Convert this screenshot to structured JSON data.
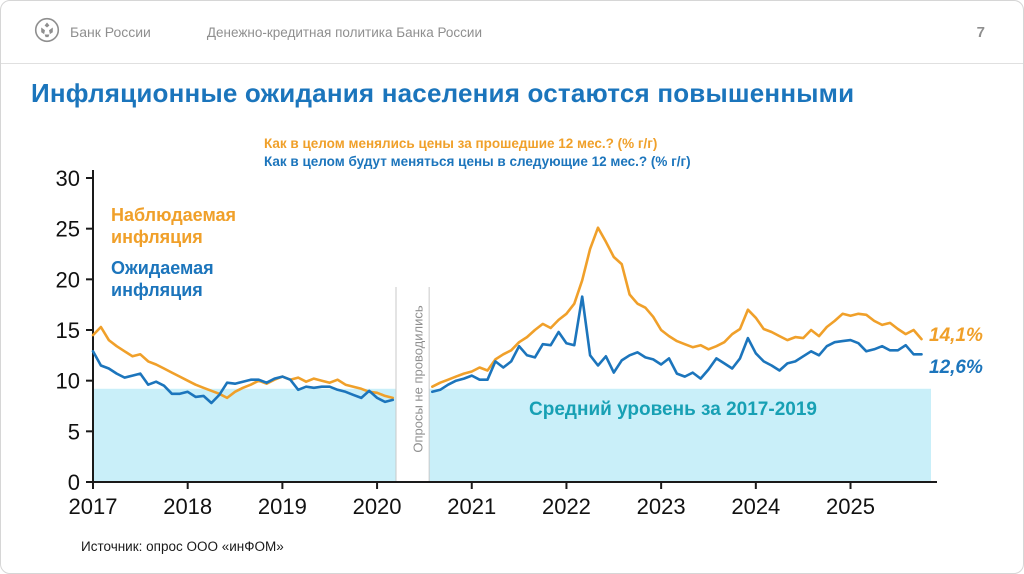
{
  "header": {
    "logo_text": "Банк России",
    "doc_title": "Денежно-кредитная политика Банка России",
    "page_number": "7"
  },
  "title": "Инфляционные ожидания населения остаются повышенными",
  "subtitles": {
    "observed": "Как в целом менялись цены за прошедшие 12 мес.? (% г/г)",
    "expected": "Как в целом будут меняться цены в следующие 12 мес.? (% г/г)"
  },
  "annotations": {
    "observed_label": "Наблюдаемая инфляция",
    "expected_label": "Ожидаемая инфляция",
    "band_label": "Средний уровень за 2017-2019",
    "gap_label": "Опросы не проводились",
    "observed_end_value": "14,1%",
    "expected_end_value": "12,6%"
  },
  "footer": {
    "source": "Источник: опрос ООО «инФОМ»"
  },
  "colors": {
    "orange": "#F0A02A",
    "blue": "#1C75BC",
    "band": "#C9EFF9",
    "band_text": "#17A0B4",
    "title_blue": "#1B75BC",
    "axis": "#1a1a1a",
    "gap_border": "#c8c8c8"
  },
  "chart_data": {
    "type": "line",
    "title": "Инфляционные ожидания населения остаются повышенными",
    "x_start_year": 2017,
    "x_ticks": [
      2017,
      2018,
      2019,
      2020,
      2021,
      2022,
      2023,
      2024,
      2025
    ],
    "ylim": [
      0,
      30
    ],
    "y_ticks": [
      0,
      5,
      10,
      15,
      20,
      25,
      30
    ],
    "avg_band": {
      "ymin": 0,
      "ymax": 9.2,
      "label": "Средний уровень за 2017-2019"
    },
    "survey_gap_x": [
      2020.2,
      2020.55
    ],
    "legend_position": "top-left",
    "series": [
      {
        "key": "observed",
        "name": "Наблюдаемая инфляция",
        "color": "#F0A02A",
        "end_value": 14.1,
        "monthly_values": [
          14.5,
          15.3,
          14.0,
          13.4,
          12.9,
          12.4,
          12.6,
          11.9,
          11.6,
          11.2,
          10.8,
          10.4,
          10.0,
          9.6,
          9.3,
          9.0,
          8.7,
          8.3,
          8.9,
          9.3,
          9.6,
          10.0,
          9.7,
          10.1,
          10.4,
          10.1,
          10.3,
          9.9,
          10.2,
          10.0,
          9.8,
          10.1,
          9.6,
          9.4,
          9.2,
          8.9,
          8.8,
          8.5,
          8.3,
          null,
          null,
          null,
          null,
          9.4,
          9.8,
          10.1,
          10.4,
          10.7,
          10.9,
          11.3,
          11.0,
          12.1,
          12.6,
          13.0,
          13.8,
          14.3,
          15.0,
          15.6,
          15.2,
          16.0,
          16.6,
          17.6,
          19.9,
          23.0,
          25.1,
          23.7,
          22.2,
          21.5,
          18.5,
          17.6,
          17.2,
          16.3,
          15.0,
          14.4,
          13.9,
          13.6,
          13.3,
          13.5,
          13.1,
          13.4,
          13.8,
          14.6,
          15.1,
          17.0,
          16.2,
          15.1,
          14.8,
          14.4,
          14.0,
          14.3,
          14.2,
          15.0,
          14.4,
          15.3,
          15.9,
          16.6,
          16.4,
          16.6,
          16.5,
          15.9,
          15.5,
          15.7,
          15.1,
          14.6,
          15.0,
          14.1
        ]
      },
      {
        "key": "expected",
        "name": "Ожидаемая инфляция",
        "color": "#1C75BC",
        "end_value": 12.6,
        "monthly_values": [
          12.9,
          11.5,
          11.2,
          10.7,
          10.3,
          10.5,
          10.7,
          9.6,
          9.9,
          9.5,
          8.7,
          8.7,
          8.9,
          8.4,
          8.5,
          7.8,
          8.6,
          9.8,
          9.7,
          9.9,
          10.1,
          10.1,
          9.8,
          10.2,
          10.4,
          10.1,
          9.1,
          9.4,
          9.3,
          9.4,
          9.4,
          9.1,
          8.9,
          8.6,
          8.3,
          9.0,
          8.3,
          7.9,
          8.1,
          null,
          null,
          null,
          null,
          8.9,
          9.1,
          9.6,
          10.0,
          10.2,
          10.5,
          10.1,
          10.1,
          11.9,
          11.3,
          11.9,
          13.4,
          12.5,
          12.3,
          13.6,
          13.5,
          14.8,
          13.7,
          13.5,
          18.3,
          12.5,
          11.5,
          12.4,
          10.8,
          12.0,
          12.5,
          12.8,
          12.3,
          12.1,
          11.6,
          12.2,
          10.7,
          10.4,
          10.8,
          10.2,
          11.1,
          12.2,
          11.7,
          11.2,
          12.2,
          14.2,
          12.7,
          11.9,
          11.5,
          11.0,
          11.7,
          11.9,
          12.4,
          12.9,
          12.5,
          13.4,
          13.8,
          13.9,
          14.0,
          13.7,
          12.9,
          13.1,
          13.4,
          13.0,
          13.0,
          13.5,
          12.6,
          12.6
        ]
      }
    ]
  }
}
